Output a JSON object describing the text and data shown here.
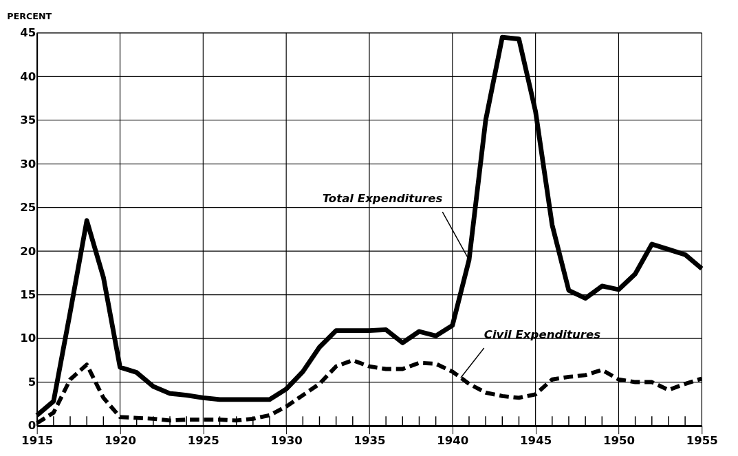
{
  "chart_data": {
    "type": "line",
    "ylabel": "PERCENT",
    "x": [
      1915,
      1916,
      1917,
      1918,
      1919,
      1920,
      1921,
      1922,
      1923,
      1924,
      1925,
      1926,
      1927,
      1928,
      1929,
      1930,
      1931,
      1932,
      1933,
      1934,
      1935,
      1936,
      1937,
      1938,
      1939,
      1940,
      1941,
      1942,
      1943,
      1944,
      1945,
      1946,
      1947,
      1948,
      1949,
      1950,
      1951,
      1952,
      1953,
      1954,
      1955
    ],
    "series": [
      {
        "color": "#000000",
        "line_style": "solid",
        "values": [
          1.2,
          2.8,
          13,
          23.5,
          17,
          6.7,
          6.1,
          4.5,
          3.7,
          3.5,
          3.2,
          3.0,
          3.0,
          3.0,
          3.0,
          4.2,
          6.2,
          9,
          10.9,
          10.9,
          10.9,
          11,
          9.5,
          10.8,
          10.3,
          11.5,
          19,
          35,
          44.5,
          44.3,
          36,
          23,
          15.5,
          14.6,
          16,
          15.6,
          17.4,
          20.8,
          20.2,
          19.6,
          18
        ]
      },
      {
        "color": "#000000",
        "line_style": "dashed",
        "values": [
          0.3,
          1.5,
          5.3,
          7,
          3.2,
          1.0,
          0.9,
          0.8,
          0.6,
          0.7,
          0.7,
          0.7,
          0.6,
          0.8,
          1.2,
          2.2,
          3.5,
          4.8,
          6.8,
          7.5,
          6.8,
          6.5,
          6.5,
          7.2,
          7.1,
          6.2,
          4.8,
          3.8,
          3.4,
          3.2,
          3.6,
          5.3,
          5.6,
          5.8,
          6.4,
          5.3,
          5.0,
          5.0,
          4.1,
          4.8,
          5.4
        ]
      }
    ],
    "annotations": [
      {
        "text": "Total Expenditures",
        "x": 1941,
        "y": 19
      },
      {
        "text": "Civil Expenditures",
        "x": 1940.5,
        "y": 5.5
      }
    ],
    "xlim": [
      1915,
      1955
    ],
    "ylim": [
      0,
      45
    ],
    "xticks": [
      1915,
      {
        "value": 1916,
        "label": null
      },
      {
        "value": 1917,
        "label": null
      },
      {
        "value": 1918,
        "label": null
      },
      {
        "value": 1919,
        "label": null
      },
      1920,
      {
        "value": 1921,
        "label": null
      },
      {
        "value": 1922,
        "label": null
      },
      {
        "value": 1923,
        "label": null
      },
      {
        "value": 1924,
        "label": null
      },
      1925,
      {
        "value": 1926,
        "label": null
      },
      {
        "value": 1927,
        "label": null
      },
      {
        "value": 1928,
        "label": null
      },
      {
        "value": 1929,
        "label": null
      },
      1930,
      {
        "value": 1931,
        "label": null
      },
      {
        "value": 1932,
        "label": null
      },
      {
        "value": 1933,
        "label": null
      },
      {
        "value": 1934,
        "label": null
      },
      1935,
      {
        "value": 1936,
        "label": null
      },
      {
        "value": 1937,
        "label": null
      },
      {
        "value": 1938,
        "label": null
      },
      {
        "value": 1939,
        "label": null
      },
      1940,
      {
        "value": 1941,
        "label": null
      },
      {
        "value": 1942,
        "label": null
      },
      {
        "value": 1943,
        "label": null
      },
      {
        "value": 1944,
        "label": null
      },
      1945,
      {
        "value": 1946,
        "label": null
      },
      {
        "value": 1947,
        "label": null
      },
      {
        "value": 1948,
        "label": null
      },
      {
        "value": 1949,
        "label": null
      },
      1950,
      {
        "value": 1951,
        "label": null
      },
      {
        "value": 1952,
        "label": null
      },
      {
        "value": 1953,
        "label": null
      },
      {
        "value": 1954,
        "label": null
      },
      1955
    ],
    "yticks": [
      0,
      5,
      10,
      15,
      20,
      25,
      30,
      35,
      40,
      45
    ],
    "grid": true
  }
}
